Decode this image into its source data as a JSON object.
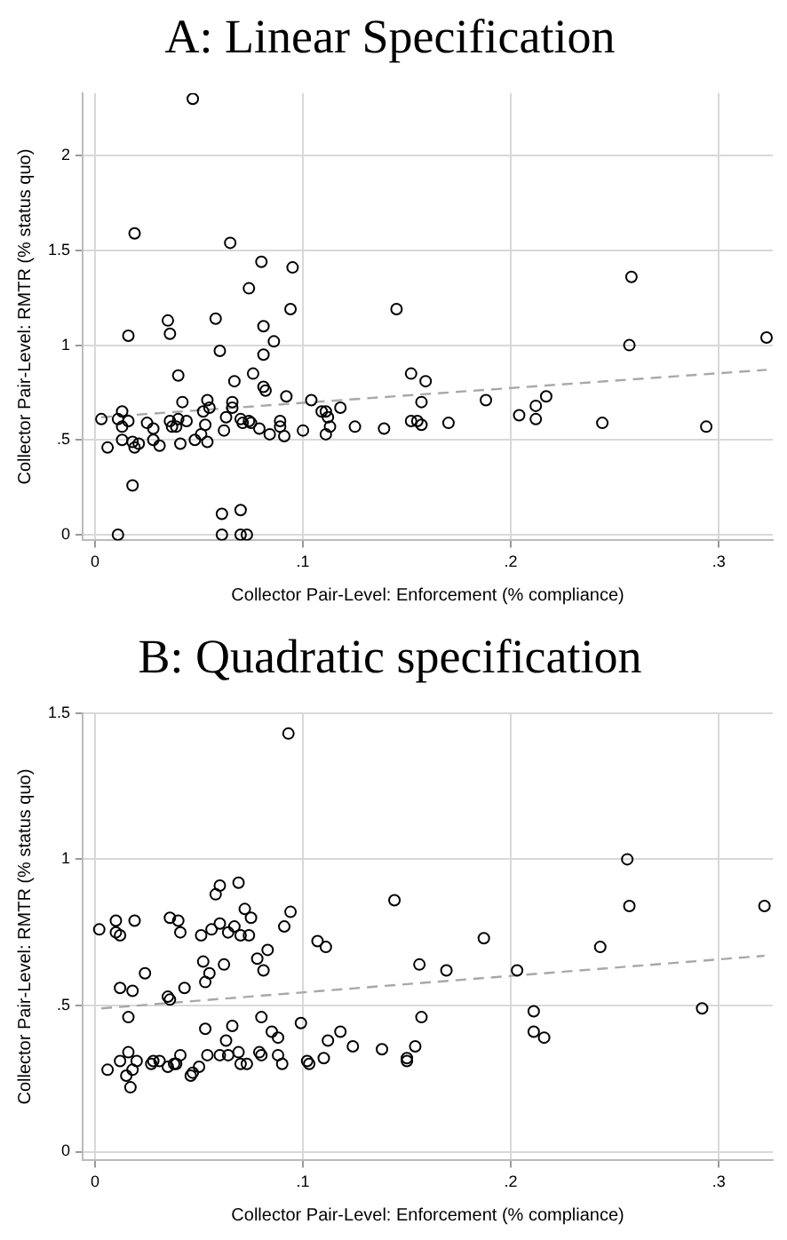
{
  "chart_data": [
    {
      "type": "scatter",
      "title": "A: Linear Specification",
      "xlabel": "Collector Pair-Level: Enforcement (% compliance)",
      "ylabel": "Collector Pair-Level: RMTR (% status quo)",
      "xlim": [
        -0.006,
        0.326
      ],
      "ylim": [
        -0.03,
        2.33
      ],
      "xticks": [
        0,
        {
          "value": 0.1,
          "label": ".1"
        },
        {
          "value": 0.2,
          "label": ".2"
        },
        {
          "value": 0.3,
          "label": ".3"
        }
      ],
      "yticks": [
        0,
        {
          "value": 0.5,
          "label": ".5"
        },
        1,
        1.5,
        2
      ],
      "grid": true,
      "legend": false,
      "series": [
        {
          "type": "scatter",
          "color": "#000000",
          "marker": "circle",
          "x": [
            0.047,
            0.019,
            0.065,
            0.08,
            0.095,
            0.074,
            0.035,
            0.058,
            0.094,
            0.036,
            0.016,
            0.081,
            0.086,
            0.06,
            0.081,
            0.04,
            0.076,
            0.067,
            0.081,
            0.082,
            0.092,
            0.042,
            0.054,
            0.066,
            0.003,
            0.013,
            0.011,
            0.016,
            0.013,
            0.013,
            0.006,
            0.018,
            0.019,
            0.021,
            0.025,
            0.028,
            0.028,
            0.031,
            0.036,
            0.037,
            0.04,
            0.039,
            0.044,
            0.041,
            0.048,
            0.051,
            0.052,
            0.055,
            0.053,
            0.054,
            0.062,
            0.063,
            0.066,
            0.07,
            0.071,
            0.074,
            0.075,
            0.079,
            0.084,
            0.089,
            0.089,
            0.091,
            0.1,
            0.104,
            0.109,
            0.111,
            0.112,
            0.113,
            0.111,
            0.118,
            0.125,
            0.139,
            0.145,
            0.152,
            0.152,
            0.155,
            0.157,
            0.159,
            0.157,
            0.17,
            0.188,
            0.204,
            0.212,
            0.212,
            0.217,
            0.244,
            0.258,
            0.257,
            0.294,
            0.323,
            0.018,
            0.011,
            0.061,
            0.07,
            0.061,
            0.07,
            0.073
          ],
          "values": [
            2.3,
            1.59,
            1.54,
            1.44,
            1.41,
            1.3,
            1.13,
            1.14,
            1.19,
            1.06,
            1.05,
            1.1,
            1.02,
            0.97,
            0.95,
            0.84,
            0.85,
            0.81,
            0.78,
            0.76,
            0.73,
            0.7,
            0.71,
            0.7,
            0.61,
            0.65,
            0.61,
            0.6,
            0.57,
            0.5,
            0.46,
            0.49,
            0.46,
            0.48,
            0.59,
            0.56,
            0.5,
            0.47,
            0.6,
            0.57,
            0.61,
            0.57,
            0.6,
            0.48,
            0.5,
            0.53,
            0.65,
            0.67,
            0.58,
            0.49,
            0.55,
            0.62,
            0.67,
            0.61,
            0.59,
            0.6,
            0.59,
            0.56,
            0.53,
            0.6,
            0.57,
            0.52,
            0.55,
            0.71,
            0.65,
            0.65,
            0.62,
            0.57,
            0.53,
            0.67,
            0.57,
            0.56,
            1.19,
            0.85,
            0.6,
            0.6,
            0.58,
            0.81,
            0.7,
            0.59,
            0.71,
            0.63,
            0.68,
            0.61,
            0.73,
            0.59,
            1.36,
            1.0,
            0.57,
            1.04,
            0.26,
            0,
            0.11,
            0.13,
            0,
            0,
            0
          ]
        },
        {
          "type": "line",
          "color": "#a8a8a8",
          "marker": "none",
          "line_style": "dashed",
          "x": [
            0.003,
            0.323
          ],
          "values": [
            0.62,
            0.87
          ]
        }
      ]
    },
    {
      "type": "scatter",
      "title": "B: Quadratic specification",
      "xlabel": "Collector Pair-Level: Enforcement (% compliance)",
      "ylabel": "Collector Pair-Level: RMTR (% status quo)",
      "xlim": [
        -0.006,
        0.326
      ],
      "ylim": [
        -0.03,
        1.5
      ],
      "xticks": [
        0,
        {
          "value": 0.1,
          "label": ".1"
        },
        {
          "value": 0.2,
          "label": ".2"
        },
        {
          "value": 0.3,
          "label": ".3"
        }
      ],
      "yticks": [
        0,
        {
          "value": 0.5,
          "label": ".5"
        },
        1,
        1.5
      ],
      "grid": true,
      "legend": false,
      "series": [
        {
          "type": "scatter",
          "color": "#000000",
          "marker": "circle",
          "x": [
            0.093,
            0.069,
            0.06,
            0.058,
            0.144,
            0.072,
            0.094,
            0.075,
            0.036,
            0.04,
            0.019,
            0.01,
            0.06,
            0.067,
            0.091,
            0.01,
            0.012,
            0.002,
            0.056,
            0.064,
            0.041,
            0.051,
            0.07,
            0.074,
            0.107,
            0.111,
            0.078,
            0.083,
            0.052,
            0.062,
            0.081,
            0.055,
            0.024,
            0.053,
            0.012,
            0.043,
            0.018,
            0.035,
            0.036,
            0.016,
            0.08,
            0.099,
            0.053,
            0.066,
            0.085,
            0.088,
            0.118,
            0.063,
            0.112,
            0.124,
            0.138,
            0.016,
            0.041,
            0.06,
            0.064,
            0.069,
            0.079,
            0.08,
            0.088,
            0.012,
            0.02,
            0.027,
            0.028,
            0.031,
            0.035,
            0.038,
            0.039,
            0.054,
            0.05,
            0.046,
            0.047,
            0.07,
            0.073,
            0.09,
            0.102,
            0.103,
            0.11,
            0.006,
            0.015,
            0.018,
            0.017,
            0.154,
            0.15,
            0.15,
            0.156,
            0.169,
            0.187,
            0.203,
            0.157,
            0.211,
            0.211,
            0.216,
            0.243,
            0.256,
            0.257,
            0.292,
            0.322
          ],
          "values": [
            1.43,
            0.92,
            0.91,
            0.88,
            0.86,
            0.83,
            0.82,
            0.8,
            0.8,
            0.79,
            0.79,
            0.79,
            0.78,
            0.77,
            0.77,
            0.75,
            0.74,
            0.76,
            0.76,
            0.75,
            0.75,
            0.74,
            0.74,
            0.74,
            0.72,
            0.7,
            0.66,
            0.69,
            0.65,
            0.64,
            0.62,
            0.61,
            0.61,
            0.58,
            0.56,
            0.56,
            0.55,
            0.53,
            0.52,
            0.46,
            0.46,
            0.44,
            0.42,
            0.43,
            0.41,
            0.39,
            0.41,
            0.38,
            0.38,
            0.36,
            0.35,
            0.34,
            0.33,
            0.33,
            0.33,
            0.34,
            0.34,
            0.33,
            0.33,
            0.31,
            0.31,
            0.3,
            0.31,
            0.31,
            0.29,
            0.3,
            0.3,
            0.33,
            0.29,
            0.26,
            0.27,
            0.3,
            0.3,
            0.3,
            0.31,
            0.3,
            0.32,
            0.28,
            0.26,
            0.28,
            0.22,
            0.36,
            0.31,
            0.32,
            0.64,
            0.62,
            0.73,
            0.62,
            0.46,
            0.48,
            0.41,
            0.39,
            0.7,
            1.0,
            0.84,
            0.49,
            0.84
          ]
        },
        {
          "type": "line",
          "color": "#a8a8a8",
          "marker": "none",
          "line_style": "dashed",
          "x": [
            0.003,
            0.322
          ],
          "values": [
            0.49,
            0.67
          ]
        }
      ]
    }
  ]
}
